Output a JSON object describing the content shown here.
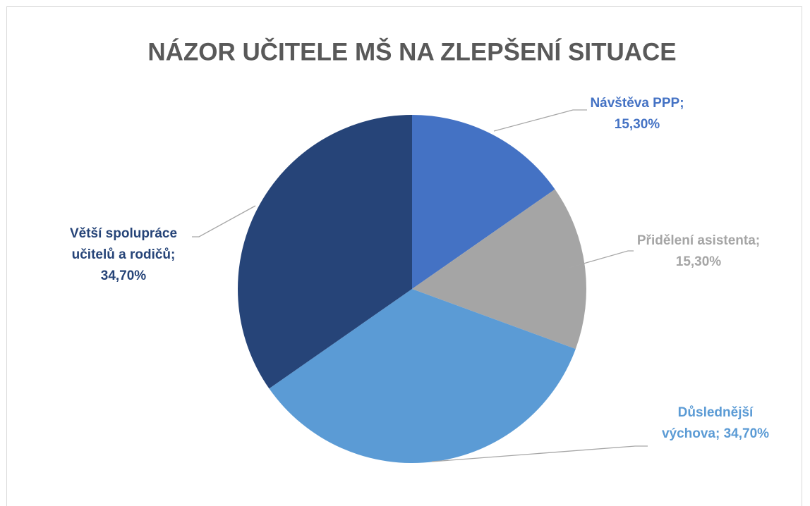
{
  "chart_data": {
    "type": "pie",
    "title": "NÁZOR UČITELE MŠ NA ZLEPŠENÍ SITUACE",
    "categories": [
      "Návštěva PPP",
      "Přidělení asistenta",
      "Důslednější výchova",
      "Větší spolupráce učitelů a rodičů"
    ],
    "values": [
      15.3,
      15.3,
      34.7,
      34.7
    ],
    "value_labels": [
      "15,30%",
      "15,30%",
      "34,70%",
      "34,70%"
    ],
    "label_separator": ";",
    "colors": [
      "#4472c4",
      "#a5a5a5",
      "#5b9bd5",
      "#264478"
    ]
  }
}
